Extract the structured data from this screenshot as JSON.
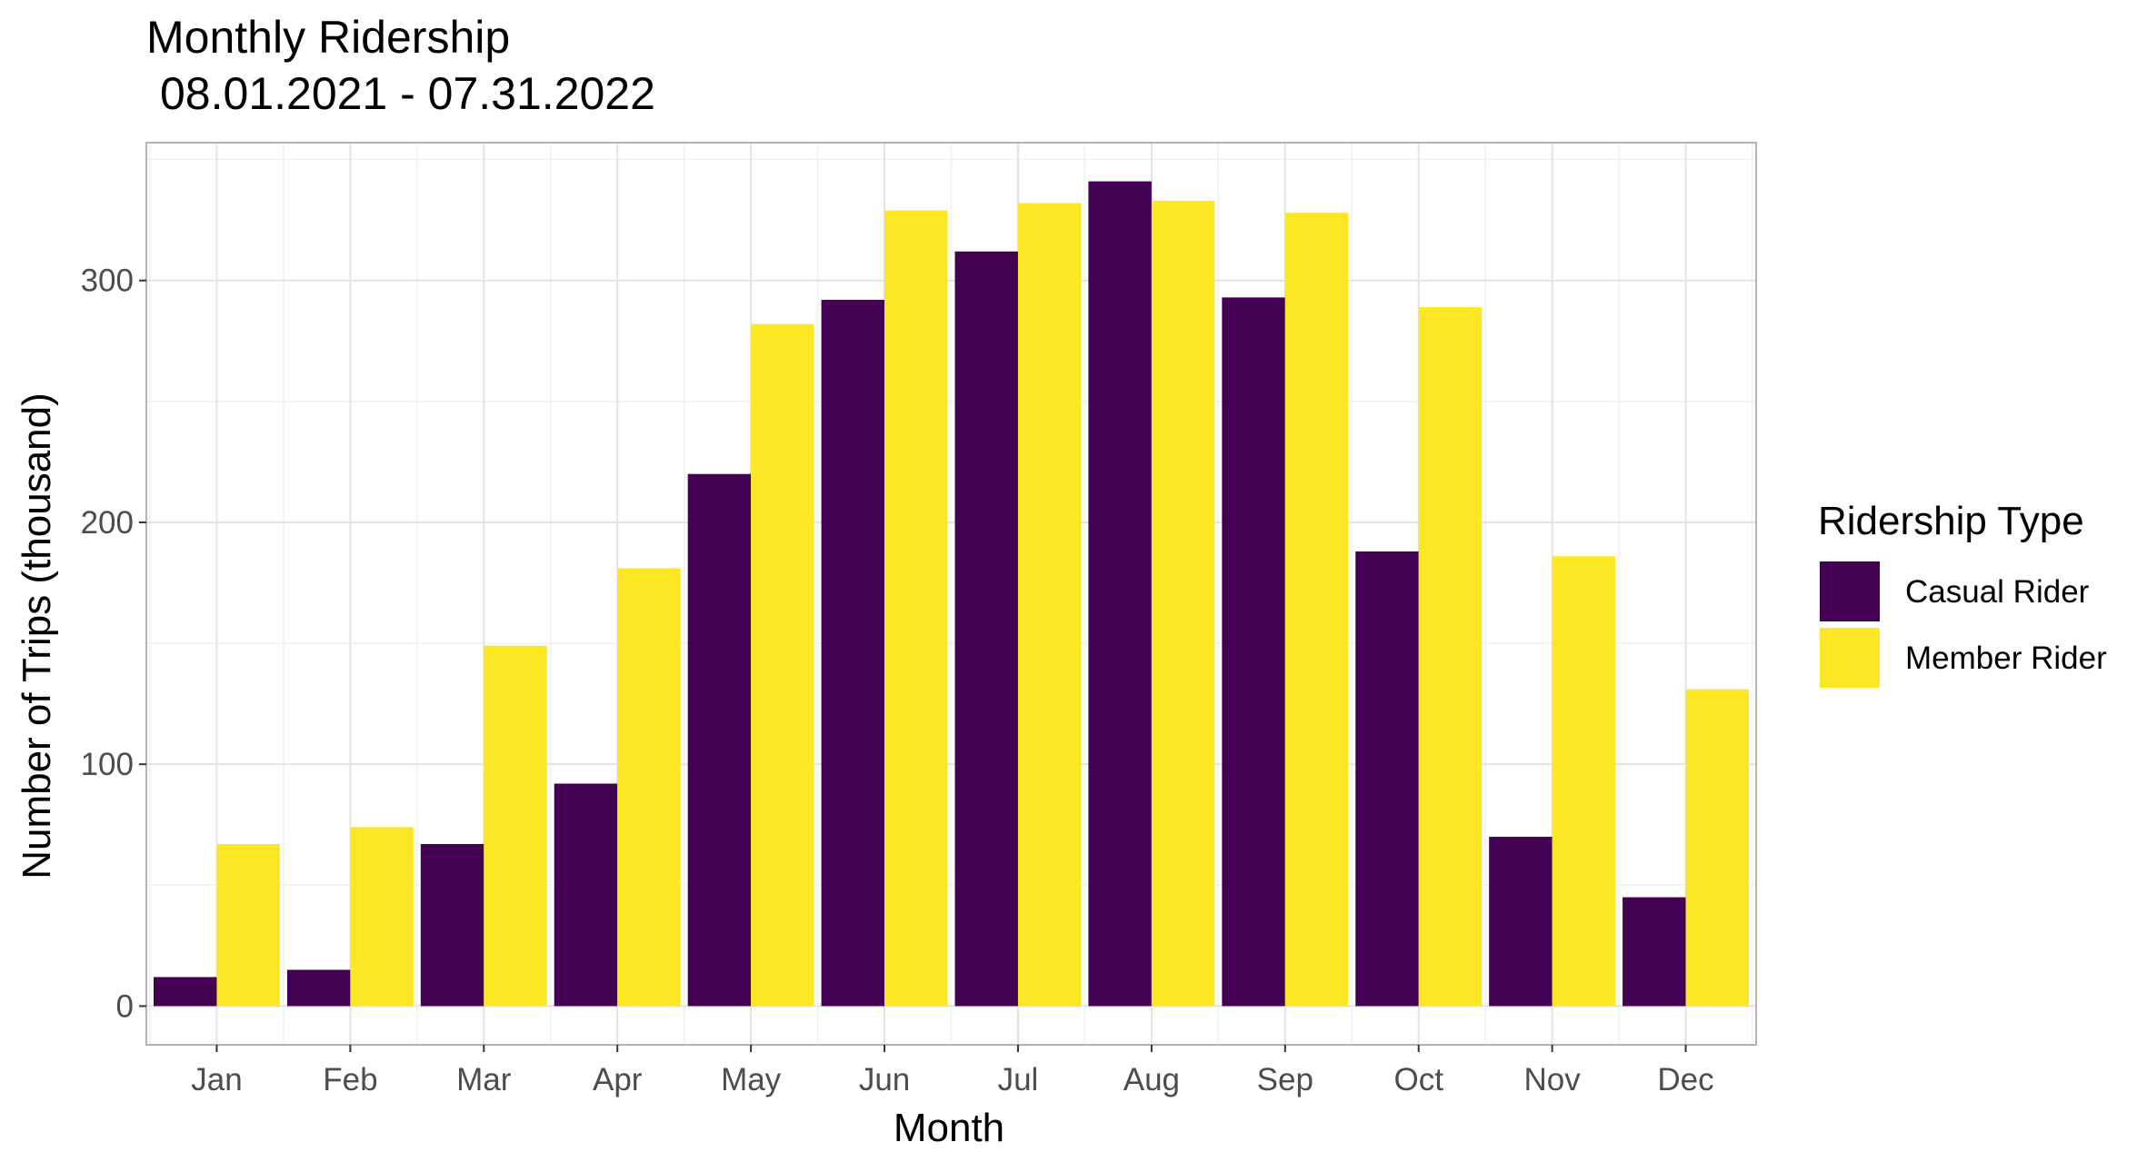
{
  "chart_data": {
    "type": "bar",
    "title": "Monthly Ridership",
    "subtitle": "08.01.2021 - 07.31.2022",
    "xlabel": "Month",
    "ylabel": "Number of Trips (thousand)",
    "categories": [
      "Jan",
      "Feb",
      "Mar",
      "Apr",
      "May",
      "Jun",
      "Jul",
      "Aug",
      "Sep",
      "Oct",
      "Nov",
      "Dec"
    ],
    "series": [
      {
        "name": "Casual Rider",
        "color": "#440154",
        "values": [
          12,
          15,
          67,
          92,
          220,
          292,
          312,
          341,
          293,
          188,
          70,
          45
        ]
      },
      {
        "name": "Member Rider",
        "color": "#FDE725",
        "values": [
          67,
          74,
          149,
          181,
          282,
          329,
          332,
          333,
          328,
          289,
          186,
          131
        ]
      }
    ],
    "ylim": [
      -16,
      357
    ],
    "yticks": [
      0,
      100,
      200,
      300
    ],
    "grid": true,
    "legend": {
      "title": "Ridership Type",
      "position": "right"
    }
  }
}
